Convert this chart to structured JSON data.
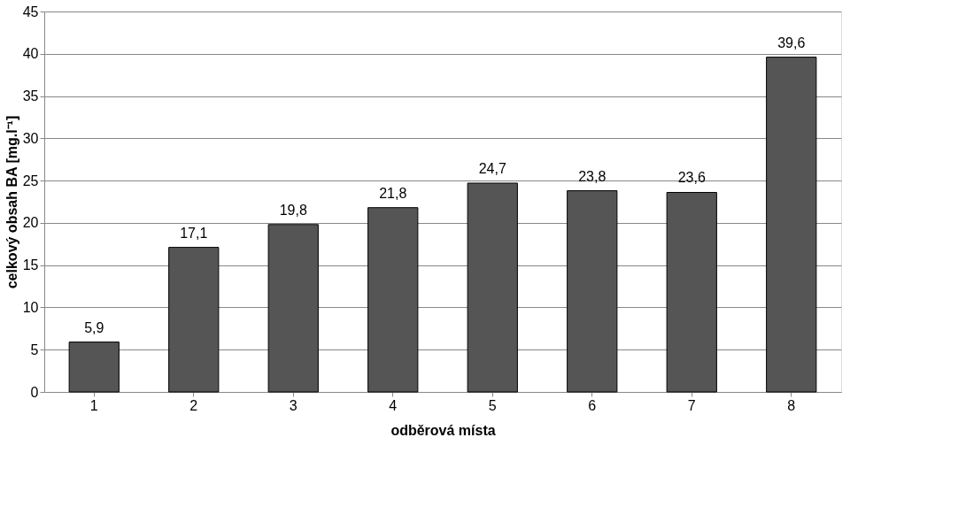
{
  "chart_data": {
    "type": "bar",
    "xlabel": "odběrová místa",
    "ylabel": "celkový obsah BA [mg.l⁻¹]",
    "categories": [
      "1",
      "2",
      "3",
      "4",
      "5",
      "6",
      "7",
      "8"
    ],
    "values": [
      5.9,
      17.1,
      19.8,
      21.8,
      24.7,
      23.8,
      23.6,
      39.6
    ],
    "color": "#555555",
    "ylim": [
      0,
      45
    ],
    "yticks": [
      0,
      5,
      10,
      15,
      20,
      25,
      30,
      35,
      40,
      45
    ],
    "value_labels": [
      "5,9",
      "17,1",
      "19,8",
      "21,8",
      "24,7",
      "23,8",
      "23,6",
      "39,6"
    ],
    "grid": "y"
  }
}
